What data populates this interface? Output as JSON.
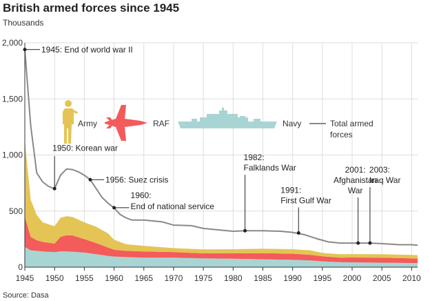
{
  "chart_data": {
    "type": "area",
    "title": "British armed forces since 1945",
    "subtitle": "Thousands",
    "source": "Source: Dasa",
    "ylim": [
      0,
      2000
    ],
    "xlim": [
      1945,
      2011
    ],
    "y_ticks": [
      0,
      500,
      1000,
      1500,
      2000
    ],
    "y_tick_labels": [
      "0",
      "500",
      "1,000",
      "1,500",
      "2,000"
    ],
    "x_ticks": [
      1945,
      1950,
      1955,
      1960,
      1965,
      1970,
      1975,
      1980,
      1985,
      1990,
      1995,
      2000,
      2005,
      2010
    ],
    "x_tick_labels": [
      "1945",
      "1950",
      "1955",
      "1960",
      "1965",
      "1970",
      "1975",
      "1980",
      "1985",
      "1990",
      "1995",
      "2000",
      "2005",
      "2010"
    ],
    "grid": true,
    "stacked": true,
    "x": [
      1945,
      1946,
      1947,
      1948,
      1950,
      1951,
      1952,
      1953,
      1955,
      1957,
      1959,
      1960,
      1962,
      1965,
      1970,
      1975,
      1980,
      1985,
      1990,
      1993,
      1995,
      1998,
      2000,
      2005,
      2010,
      2011
    ],
    "series": [
      {
        "name": "Navy",
        "color": "#a8d5d3",
        "values": [
          180,
          150,
          145,
          140,
          135,
          140,
          140,
          138,
          130,
          115,
          100,
          95,
          90,
          85,
          85,
          78,
          75,
          70,
          65,
          60,
          52,
          45,
          43,
          40,
          37,
          37
        ]
      },
      {
        "name": "RAF",
        "color": "#f45b5b",
        "values": [
          270,
          120,
          95,
          85,
          75,
          130,
          145,
          145,
          120,
          100,
          75,
          60,
          55,
          55,
          50,
          45,
          50,
          55,
          55,
          50,
          45,
          40,
          43,
          45,
          42,
          40
        ]
      },
      {
        "name": "Army",
        "color": "#e4c454",
        "values": [
          680,
          330,
          225,
          175,
          155,
          170,
          170,
          165,
          150,
          145,
          125,
          90,
          60,
          50,
          35,
          35,
          35,
          40,
          40,
          40,
          30,
          30,
          30,
          30,
          30,
          30
        ]
      }
    ],
    "total": {
      "name": "Total armed forces",
      "color": "#888888",
      "x": [
        1945,
        1946,
        1947,
        1948,
        1949,
        1950,
        1951,
        1952,
        1953,
        1954,
        1955,
        1956,
        1957,
        1958,
        1959,
        1960,
        1961,
        1962,
        1963,
        1965,
        1968,
        1970,
        1973,
        1975,
        1978,
        1980,
        1982,
        1985,
        1988,
        1990,
        1992,
        1994,
        1996,
        1998,
        2000,
        2001,
        2003,
        2005,
        2008,
        2010,
        2011
      ],
      "values": [
        1940,
        1260,
        840,
        760,
        720,
        700,
        820,
        875,
        870,
        850,
        820,
        780,
        700,
        620,
        570,
        530,
        470,
        440,
        420,
        420,
        405,
        375,
        370,
        345,
        330,
        320,
        325,
        325,
        320,
        310,
        290,
        255,
        225,
        215,
        215,
        215,
        215,
        210,
        200,
        200,
        195
      ]
    },
    "legend": [
      "Army",
      "RAF",
      "Navy",
      "Total armed forces"
    ],
    "legend_placement": "center",
    "annotations": [
      {
        "year": 1945,
        "value": 1940,
        "lines": [
          "1945: End of world war II"
        ]
      },
      {
        "year": 1950,
        "value": 700,
        "lines": [
          "1950: Korean war"
        ]
      },
      {
        "year": 1956,
        "value": 780,
        "lines": [
          "1956: Suez crisis"
        ]
      },
      {
        "year": 1960,
        "value": 530,
        "lines": [
          "1960:",
          "End of national service"
        ]
      },
      {
        "year": 1982,
        "value": 325,
        "lines": [
          "1982:",
          "Falklands War"
        ]
      },
      {
        "year": 1991,
        "value": 305,
        "lines": [
          "1991:",
          "First Gulf War"
        ]
      },
      {
        "year": 2001,
        "value": 215,
        "lines": [
          "2001:",
          "Afghanistan",
          "War"
        ]
      },
      {
        "year": 2003,
        "value": 215,
        "lines": [
          "2003:",
          "Iraq War"
        ]
      }
    ]
  }
}
